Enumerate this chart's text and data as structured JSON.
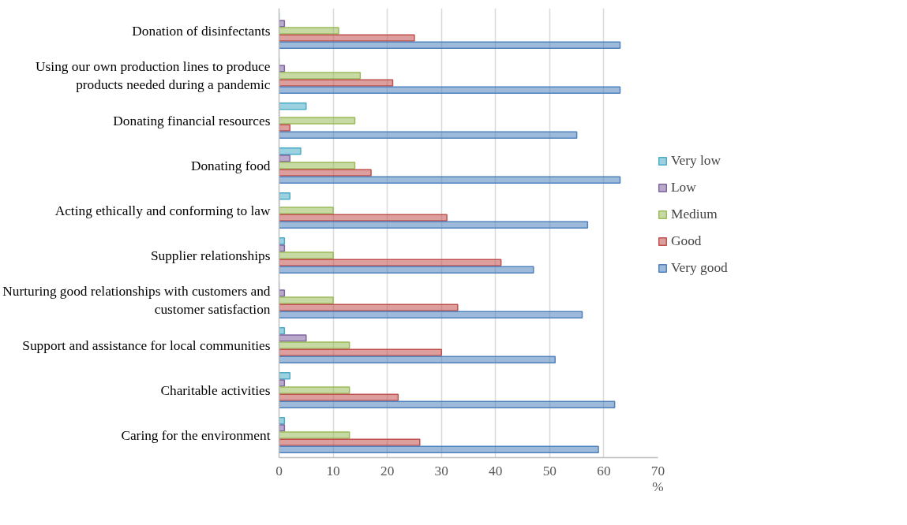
{
  "chart_data": {
    "type": "bar",
    "orientation": "horizontal",
    "xlabel": "%",
    "categories": [
      "Donation of disinfectants",
      "Using our own production lines to produce products needed during a pandemic",
      "Donating financial resources",
      "Donating food",
      "Acting ethically and conforming to law",
      "Supplier relationships",
      "Nurturing good relationships with customers and customer satisfaction",
      "Support and assistance for local communities",
      "Charitable activities",
      "Caring for the environment"
    ],
    "series": [
      {
        "name": "Very low",
        "color": "#4bacc6",
        "values": [
          0,
          0,
          5,
          4,
          2,
          1,
          0,
          1,
          2,
          1
        ]
      },
      {
        "name": "Low",
        "color": "#8064a2",
        "values": [
          1,
          1,
          0,
          2,
          0,
          1,
          1,
          5,
          1,
          1
        ]
      },
      {
        "name": "Medium",
        "color": "#9bbb59",
        "values": [
          11,
          15,
          14,
          14,
          10,
          10,
          10,
          13,
          13,
          13
        ]
      },
      {
        "name": "Good",
        "color": "#c0504d",
        "values": [
          25,
          21,
          2,
          17,
          31,
          41,
          33,
          30,
          22,
          26
        ]
      },
      {
        "name": "Very good",
        "color": "#4f81bd",
        "values": [
          63,
          63,
          55,
          63,
          57,
          47,
          56,
          51,
          62,
          59
        ]
      }
    ],
    "xlim": [
      0,
      70
    ],
    "xticks": [
      0,
      10,
      20,
      30,
      40,
      50,
      60,
      70
    ],
    "grid": "x",
    "legend": "right"
  }
}
